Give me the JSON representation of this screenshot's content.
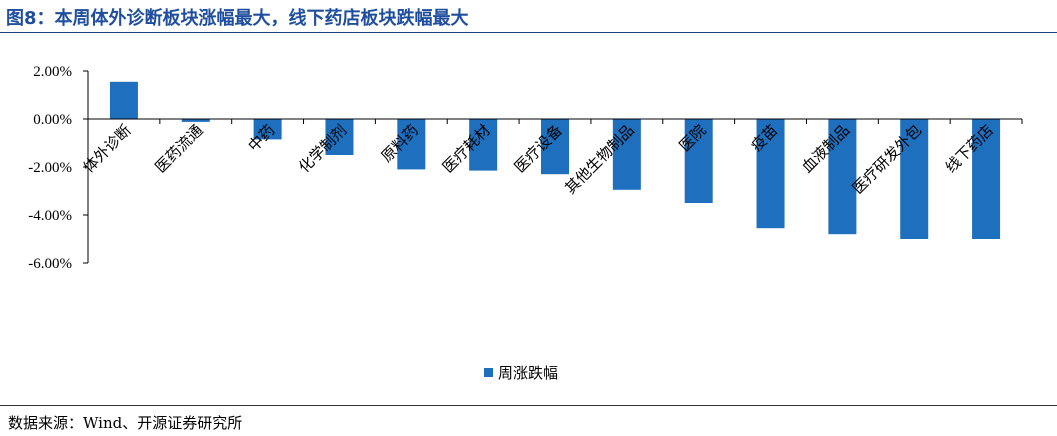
{
  "header": {
    "title": "图8：本周体外诊断板块涨幅最大，线下药店板块跌幅最大"
  },
  "footer": {
    "source": "数据来源：Wind、开源证券研究所"
  },
  "chart_data": {
    "type": "bar",
    "title": "图8：本周体外诊断板块涨幅最大，线下药店板块跌幅最大",
    "categories": [
      "体外诊断",
      "医药流通",
      "中药",
      "化学制剂",
      "原料药",
      "医疗耗材",
      "医疗设备",
      "其他生物制品",
      "医院",
      "疫苗",
      "血液制品",
      "医疗研发外包",
      "线下药店"
    ],
    "series": [
      {
        "name": "周涨跌幅",
        "values": [
          1.55,
          -0.12,
          -0.85,
          -1.5,
          -2.1,
          -2.15,
          -2.3,
          -2.95,
          -3.5,
          -4.55,
          -4.8,
          -5.0,
          -5.0
        ]
      }
    ],
    "ytick_labels": [
      "2.00%",
      "0.00%",
      "-2.00%",
      "-4.00%",
      "-6.00%"
    ],
    "ylim": [
      -6,
      2
    ],
    "yticks": [
      2,
      0,
      -2,
      -4,
      -6
    ],
    "xlabel": "",
    "ylabel": "",
    "legend": {
      "position": "bottom-center"
    },
    "colors": {
      "bar": "#1f6fbf",
      "axis": "#000000"
    }
  }
}
